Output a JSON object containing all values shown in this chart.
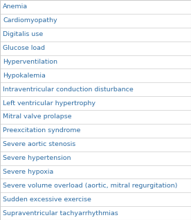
{
  "items": [
    "Anemia",
    "Cardiomyopathy",
    "Digitalis use",
    "Glucose load",
    "Hyperventilation",
    "Hypokalemia",
    "Intraventricular conduction disturbance",
    "Left ventricular hypertrophy",
    "Mitral valve prolapse",
    "Preexcitation syndrome",
    "Severe aortic stenosis",
    "Severe hypertension",
    "Severe hypoxia",
    "Severe volume overload (aortic, mitral regurgitation)",
    "Sudden excessive exercise",
    "Supraventricular tachyarrhythmias"
  ],
  "text_color": "#2e6da4",
  "bg_color": "#ffffff",
  "line_color": "#cccccc",
  "font_size": 6.8,
  "fig_width": 2.76,
  "fig_height": 3.18,
  "dpi": 100
}
